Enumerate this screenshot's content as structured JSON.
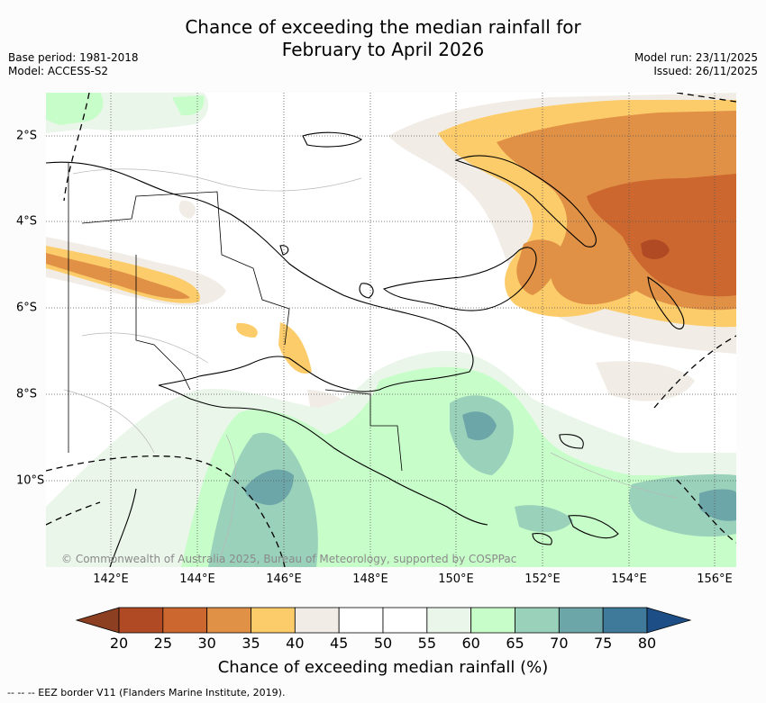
{
  "title_line1": "Chance of exceeding the median rainfall for",
  "title_line2": "February to April 2026",
  "base_period": "Base period: 1981-2018",
  "model": "Model: ACCESS-S2",
  "model_run": "Model run: 23/11/2025",
  "issued": "Issued: 26/11/2025",
  "copyright": "© Commonwealth of Australia 2025, Bureau of Meteorology, supported by COSPPac",
  "map": {
    "lon_range": [
      141,
      157
    ],
    "lat_range": [
      -12,
      -1
    ],
    "x_ticks": [
      "142°E",
      "144°E",
      "146°E",
      "148°E",
      "150°E",
      "152°E",
      "154°E",
      "156°E"
    ],
    "y_ticks": [
      "2°S",
      "4°S",
      "6°S",
      "8°S",
      "10°S"
    ],
    "gridlines": true
  },
  "colorbar": {
    "labels": [
      "20",
      "25",
      "30",
      "35",
      "40",
      "45",
      "50",
      "55",
      "60",
      "65",
      "70",
      "75",
      "80"
    ],
    "colors": [
      "#b04a24",
      "#cd6730",
      "#e09146",
      "#fdcc6a",
      "#f1ede6",
      "#ffffff",
      "#ffffff",
      "#ebf6ea",
      "#c7fdc8",
      "#9ad1bb",
      "#6da6a8",
      "#3f7a9a"
    ],
    "below_color": "#8d3f22",
    "above_color": "#1d4f86",
    "title": "Chance of exceeding median rainfall (%)"
  },
  "footer": "--  --  -- EEZ border V11 (Flanders Marine Institute, 2019)."
}
